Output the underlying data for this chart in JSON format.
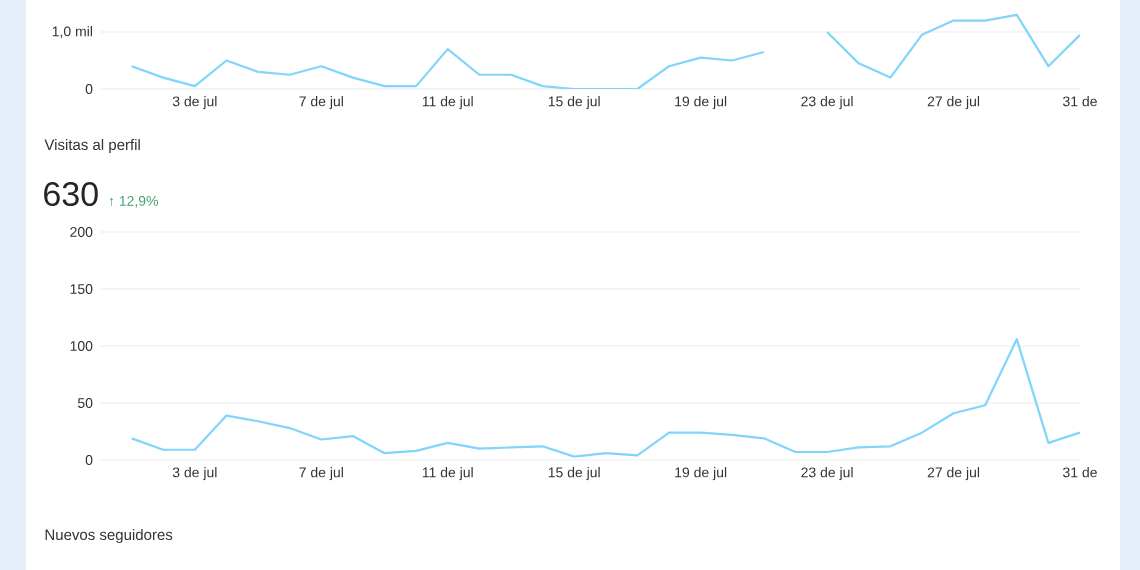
{
  "chart_data": [
    {
      "type": "line",
      "color": "#81d4fa",
      "grid": "y",
      "categories": [
        null,
        null,
        "3 de jul",
        null,
        null,
        null,
        "7 de jul",
        null,
        null,
        null,
        "11 de jul",
        null,
        null,
        null,
        "15 de jul",
        null,
        null,
        null,
        "19 de jul",
        null,
        null,
        null,
        "23 de jul",
        null,
        null,
        null,
        "27 de jul",
        null,
        null,
        null,
        "31 de"
      ],
      "values": [
        0.4,
        0.2,
        0.05,
        0.5,
        0.3,
        0.25,
        0.4,
        0.2,
        0.05,
        0.05,
        0.7,
        0.25,
        0.25,
        0.05,
        0,
        0,
        0,
        0.4,
        0.55,
        0.5,
        0.65,
        null,
        1.0,
        0.45,
        0.2,
        0.95,
        1.2,
        1.2,
        1.3,
        0.4,
        0.95
      ],
      "ylim": [
        0,
        1.5
      ],
      "yticks": [
        0,
        {
          "value": 1.0,
          "label": "1,0 mil"
        }
      ]
    },
    {
      "type": "line",
      "title": "Visitas al perfil",
      "subtitle": "630",
      "annotations": [
        "↑ 12,9%"
      ],
      "color": "#81d4fa",
      "grid": "y",
      "categories": [
        null,
        null,
        "3 de jul",
        null,
        null,
        null,
        "7 de jul",
        null,
        null,
        null,
        "11 de jul",
        null,
        null,
        null,
        "15 de jul",
        null,
        null,
        null,
        "19 de jul",
        null,
        null,
        null,
        "23 de jul",
        null,
        null,
        null,
        "27 de jul",
        null,
        null,
        null,
        "31 de"
      ],
      "values": [
        19,
        9,
        9,
        39,
        34,
        28,
        18,
        21,
        6,
        8,
        15,
        10,
        11,
        12,
        3,
        6,
        4,
        24,
        24,
        22,
        19,
        7,
        7,
        11,
        12,
        24,
        41,
        48,
        106,
        15,
        24
      ],
      "ylim": [
        0,
        200
      ],
      "yticks": [
        0,
        50,
        100,
        150,
        200
      ]
    },
    {
      "type": "other",
      "title": "Nuevos seguidores"
    }
  ]
}
